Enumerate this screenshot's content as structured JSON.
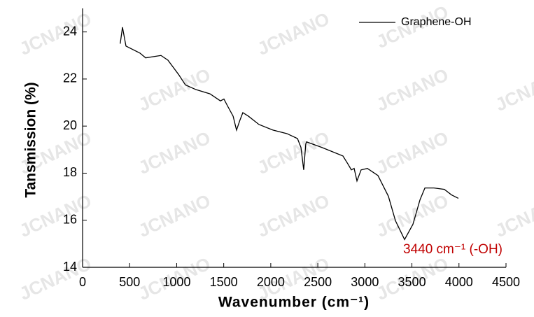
{
  "chart_data": {
    "type": "line",
    "xlabel": "Wavenumber (cm⁻¹)",
    "ylabel": "Tansmission (%)",
    "watermark": "JCNANO",
    "annotation": "3440 cm⁻¹ (-OH)",
    "annotation_color": "#c00000",
    "legend": "upper right",
    "xlim": [
      0,
      4500
    ],
    "xticks": [
      0,
      500,
      1000,
      1500,
      2000,
      2500,
      3000,
      3500,
      4000,
      4500
    ],
    "ylim": [
      14,
      25
    ],
    "yticks": [
      14,
      16,
      18,
      20,
      22,
      24
    ],
    "series": [
      {
        "name": "Graphene-OH",
        "color": "#000000",
        "x": [
          400,
          424,
          461,
          610,
          670,
          833,
          907,
          1019,
          1093,
          1205,
          1354,
          1465,
          1502,
          1540,
          1600,
          1636,
          1674,
          1703,
          1763,
          1874,
          2023,
          2172,
          2284,
          2321,
          2350,
          2372,
          2380,
          2544,
          2767,
          2826,
          2856,
          2886,
          2916,
          2960,
          3027,
          3139,
          3250,
          3325,
          3422,
          3511,
          3586,
          3638,
          3734,
          3845,
          3920,
          3994
        ],
        "values": [
          23.5,
          24.2,
          23.4,
          23.1,
          22.9,
          23.0,
          22.8,
          22.2,
          21.75,
          21.55,
          21.37,
          21.07,
          21.15,
          20.86,
          20.42,
          19.83,
          20.27,
          20.57,
          20.42,
          20.07,
          19.83,
          19.68,
          19.47,
          19.09,
          18.14,
          19.24,
          19.33,
          19.09,
          18.73,
          18.35,
          18.14,
          18.2,
          17.67,
          18.14,
          18.2,
          17.9,
          17.02,
          15.98,
          15.18,
          15.83,
          16.87,
          17.37,
          17.37,
          17.31,
          17.08,
          16.93
        ]
      }
    ]
  }
}
